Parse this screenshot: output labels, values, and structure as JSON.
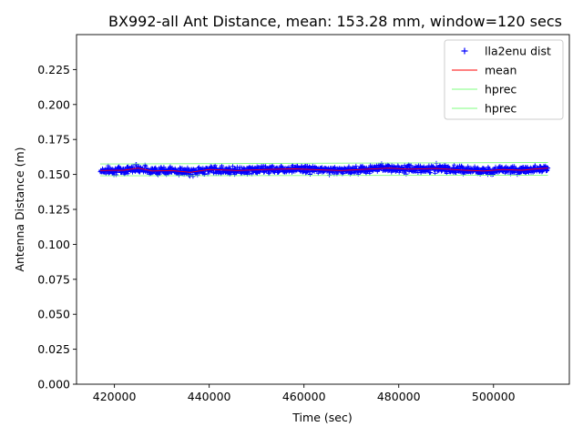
{
  "chart_data": {
    "type": "scatter",
    "title": "BX992-all Ant Distance, mean: 153.28 mm, window=120 secs",
    "xlabel": "Time (sec)",
    "ylabel": "Antenna Distance (m)",
    "xlim": [
      412000,
      516000
    ],
    "ylim": [
      0.0,
      0.25
    ],
    "xticks": [
      420000,
      440000,
      460000,
      480000,
      500000
    ],
    "xtick_labels": [
      "420000",
      "440000",
      "460000",
      "480000",
      "500000"
    ],
    "yticks": [
      0.0,
      0.025,
      0.05,
      0.075,
      0.1,
      0.125,
      0.15,
      0.175,
      0.2,
      0.225
    ],
    "ytick_labels": [
      "0.000",
      "0.025",
      "0.050",
      "0.075",
      "0.100",
      "0.125",
      "0.150",
      "0.175",
      "0.200",
      "0.225"
    ],
    "grid": false,
    "legend_position": "top-right",
    "series": [
      {
        "name": "lla2enu dist",
        "kind": "marker-plus",
        "color": "#0000ff",
        "x_range": [
          417000,
          511500
        ],
        "center": 0.1533,
        "spread_approx": 0.004
      },
      {
        "name": "mean",
        "kind": "line",
        "color": "#ff0000",
        "x": [
          417000,
          422000,
          425000,
          428000,
          432000,
          436000,
          440000,
          446000,
          452000,
          458000,
          464000,
          468000,
          472000,
          478000,
          482000,
          488000,
          494000,
          498000,
          502000,
          506000,
          509000,
          511500
        ],
        "y": [
          0.1528,
          0.153,
          0.1545,
          0.1525,
          0.1528,
          0.1515,
          0.1535,
          0.1528,
          0.1535,
          0.154,
          0.1532,
          0.1528,
          0.1535,
          0.1545,
          0.1538,
          0.1542,
          0.153,
          0.1525,
          0.1535,
          0.153,
          0.154,
          0.1545
        ]
      },
      {
        "name": "hprec",
        "kind": "line",
        "color": "#7fff7f",
        "x": [
          417000,
          511500
        ],
        "y": [
          0.1575,
          0.1585
        ]
      },
      {
        "name": "hprec",
        "kind": "line",
        "color": "#7fff7f",
        "x": [
          417000,
          511500
        ],
        "y": [
          0.149,
          0.1495
        ]
      }
    ]
  }
}
